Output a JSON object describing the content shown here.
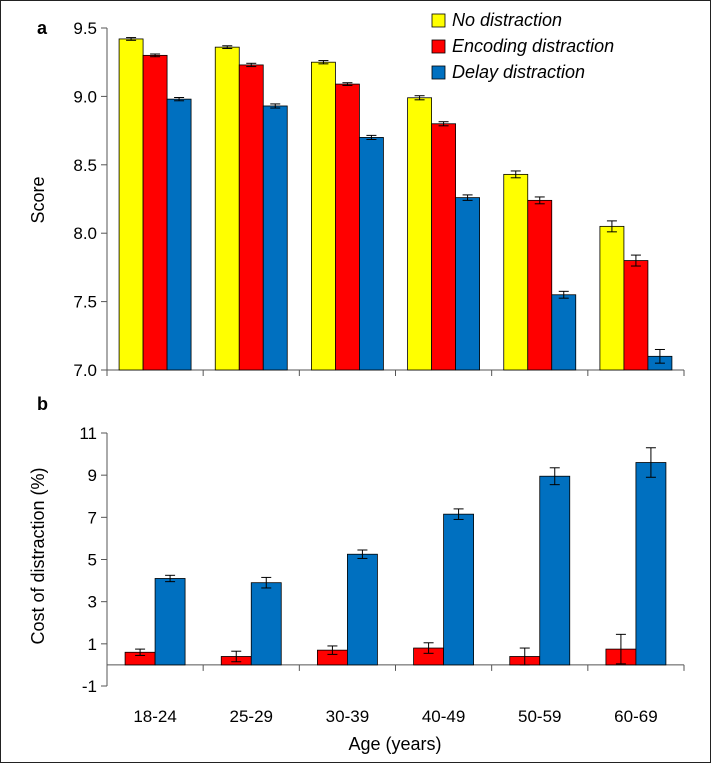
{
  "figure": {
    "xlabel": "Age (years)",
    "categories": [
      "18-24",
      "25-29",
      "30-39",
      "40-49",
      "50-59",
      "60-69"
    ]
  },
  "chart_data": [
    {
      "type": "bar",
      "panel": "a",
      "categories": [
        "18-24",
        "25-29",
        "30-39",
        "40-49",
        "50-59",
        "60-69"
      ],
      "ylabel": "Score",
      "xlabel": "",
      "ylim": [
        7.0,
        9.5
      ],
      "yticks": [
        "7.0",
        "7.5",
        "8.0",
        "8.5",
        "9.0",
        "9.5"
      ],
      "legend_position": "top-right",
      "grid": false,
      "series": [
        {
          "name": "No distraction",
          "color": "#ffff00",
          "values": [
            9.42,
            9.36,
            9.25,
            8.99,
            8.43,
            8.05
          ],
          "errors": [
            0.01,
            0.01,
            0.012,
            0.015,
            0.025,
            0.04
          ]
        },
        {
          "name": "Encoding distraction",
          "color": "#ff0000",
          "values": [
            9.3,
            9.23,
            9.09,
            8.8,
            8.24,
            7.8
          ],
          "errors": [
            0.01,
            0.012,
            0.01,
            0.015,
            0.025,
            0.04
          ]
        },
        {
          "name": "Delay distraction",
          "color": "#0070c0",
          "values": [
            8.98,
            8.93,
            8.7,
            8.26,
            7.55,
            7.1
          ],
          "errors": [
            0.012,
            0.015,
            0.015,
            0.02,
            0.025,
            0.05
          ]
        }
      ]
    },
    {
      "type": "bar",
      "panel": "b",
      "categories": [
        "18-24",
        "25-29",
        "30-39",
        "40-49",
        "50-59",
        "60-69"
      ],
      "ylabel": "Cost of distraction (%)",
      "xlabel": "Age (years)",
      "ylim": [
        -1,
        11
      ],
      "yticks": [
        "-1",
        "1",
        "3",
        "5",
        "7",
        "9",
        "11"
      ],
      "grid": false,
      "series": [
        {
          "color": "#ff0000",
          "values": [
            0.6,
            0.4,
            0.7,
            0.8,
            0.4,
            0.75
          ],
          "errors": [
            0.15,
            0.25,
            0.2,
            0.25,
            0.4,
            0.7
          ]
        },
        {
          "color": "#0070c0",
          "values": [
            4.1,
            3.9,
            5.25,
            7.15,
            8.95,
            9.6
          ],
          "errors": [
            0.15,
            0.25,
            0.2,
            0.25,
            0.4,
            0.7
          ]
        }
      ]
    }
  ]
}
